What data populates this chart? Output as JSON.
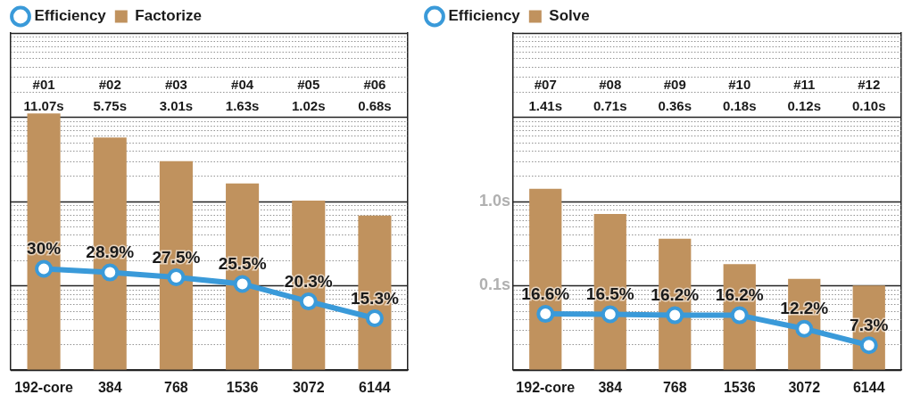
{
  "chart_data": [
    {
      "type": "bar",
      "categories": [
        "192-core",
        "384",
        "768",
        "1536",
        "3072",
        "6144"
      ],
      "series": [
        {
          "name": "Efficiency",
          "type": "line",
          "axis": "y2",
          "color": "#3a9ad9",
          "values": [
            30,
            28.9,
            27.5,
            25.5,
            20.3,
            15.3
          ],
          "value_labels": [
            "30%",
            "28.9%",
            "27.5%",
            "25.5%",
            "20.3%",
            "15.3%"
          ]
        },
        {
          "name": "Factorize",
          "color": "#c0925e",
          "values": [
            11.07,
            5.75,
            3.01,
            1.63,
            1.02,
            0.68
          ]
        }
      ],
      "log": "y",
      "ylim": [
        0.01,
        100
      ],
      "yticks": [
        {
          "value": 0.01,
          "label": null
        },
        {
          "value": 0.02,
          "label": null
        },
        {
          "value": 0.03,
          "label": null
        },
        {
          "value": 0.04,
          "label": null
        },
        {
          "value": 0.05,
          "label": null
        },
        {
          "value": 0.06,
          "label": null
        },
        {
          "value": 0.07,
          "label": null
        },
        {
          "value": 0.08,
          "label": null
        },
        {
          "value": 0.09,
          "label": null
        },
        {
          "value": 0.1,
          "label": null
        },
        {
          "value": 0.2,
          "label": null
        },
        {
          "value": 0.3,
          "label": null
        },
        {
          "value": 0.4,
          "label": null
        },
        {
          "value": 0.5,
          "label": null
        },
        {
          "value": 0.6,
          "label": null
        },
        {
          "value": 0.7,
          "label": null
        },
        {
          "value": 0.8,
          "label": null
        },
        {
          "value": 0.9,
          "label": null
        },
        {
          "value": 1,
          "label": null
        },
        {
          "value": 2,
          "label": null
        },
        {
          "value": 3,
          "label": null
        },
        {
          "value": 4,
          "label": null
        },
        {
          "value": 5,
          "label": null
        },
        {
          "value": 6,
          "label": null
        },
        {
          "value": 7,
          "label": null
        },
        {
          "value": 8,
          "label": null
        },
        {
          "value": 9,
          "label": null
        },
        {
          "value": 10,
          "label": null
        },
        {
          "value": 20,
          "label": null
        },
        {
          "value": 30,
          "label": null
        },
        {
          "value": 40,
          "label": null
        },
        {
          "value": 50,
          "label": null
        },
        {
          "value": 60,
          "label": null
        },
        {
          "value": 70,
          "label": null
        },
        {
          "value": 80,
          "label": null
        },
        {
          "value": 90,
          "label": null
        },
        {
          "value": 100,
          "label": null
        }
      ],
      "y2lim": [
        0,
        100
      ],
      "grid": "y",
      "legend": "top left",
      "marker": "circle",
      "tick_labels": "x",
      "annotations": [
        "#01",
        "#02",
        "#03",
        "#04",
        "#05",
        "#06",
        "11.07s",
        "5.75s",
        "3.01s",
        "1.63s",
        "1.02s",
        "0.68s"
      ]
    },
    {
      "type": "bar",
      "categories": [
        "192-core",
        "384",
        "768",
        "1536",
        "3072",
        "6144"
      ],
      "series": [
        {
          "name": "Efficiency",
          "type": "line",
          "axis": "y2",
          "color": "#3a9ad9",
          "values": [
            16.6,
            16.5,
            16.2,
            16.2,
            12.2,
            7.3
          ],
          "value_labels": [
            "16.6%",
            "16.5%",
            "16.2%",
            "16.2%",
            "12.2%",
            "7.3%"
          ]
        },
        {
          "name": "Solve",
          "color": "#c0925e",
          "values": [
            1.41,
            0.71,
            0.36,
            0.18,
            0.12,
            0.1
          ]
        }
      ],
      "log": "y",
      "ylim": [
        0.01,
        100
      ],
      "yticks": [
        {
          "value": 0.01,
          "label": null
        },
        {
          "value": 0.02,
          "label": null
        },
        {
          "value": 0.03,
          "label": null
        },
        {
          "value": 0.04,
          "label": null
        },
        {
          "value": 0.05,
          "label": null
        },
        {
          "value": 0.06,
          "label": null
        },
        {
          "value": 0.07,
          "label": null
        },
        {
          "value": 0.08,
          "label": null
        },
        {
          "value": 0.09,
          "label": null
        },
        {
          "value": 0.1,
          "label": "0.1s"
        },
        {
          "value": 0.2,
          "label": null
        },
        {
          "value": 0.3,
          "label": null
        },
        {
          "value": 0.4,
          "label": null
        },
        {
          "value": 0.5,
          "label": null
        },
        {
          "value": 0.6,
          "label": null
        },
        {
          "value": 0.7,
          "label": null
        },
        {
          "value": 0.8,
          "label": null
        },
        {
          "value": 0.9,
          "label": null
        },
        {
          "value": 1,
          "label": "1.0s"
        },
        {
          "value": 2,
          "label": null
        },
        {
          "value": 3,
          "label": null
        },
        {
          "value": 4,
          "label": null
        },
        {
          "value": 5,
          "label": null
        },
        {
          "value": 6,
          "label": null
        },
        {
          "value": 7,
          "label": null
        },
        {
          "value": 8,
          "label": null
        },
        {
          "value": 9,
          "label": null
        },
        {
          "value": 10,
          "label": null
        },
        {
          "value": 20,
          "label": null
        },
        {
          "value": 30,
          "label": null
        },
        {
          "value": 40,
          "label": null
        },
        {
          "value": 50,
          "label": null
        },
        {
          "value": 60,
          "label": null
        },
        {
          "value": 70,
          "label": null
        },
        {
          "value": 80,
          "label": null
        },
        {
          "value": 90,
          "label": null
        },
        {
          "value": 100,
          "label": null
        }
      ],
      "y2lim": [
        0,
        100
      ],
      "grid": "y",
      "legend": "top left",
      "marker": "circle",
      "annotations": [
        "#07",
        "#08",
        "#09",
        "#10",
        "#11",
        "#12",
        "1.41s",
        "0.71s",
        "0.36s",
        "0.18s",
        "0.12s",
        "0.10s"
      ]
    }
  ]
}
